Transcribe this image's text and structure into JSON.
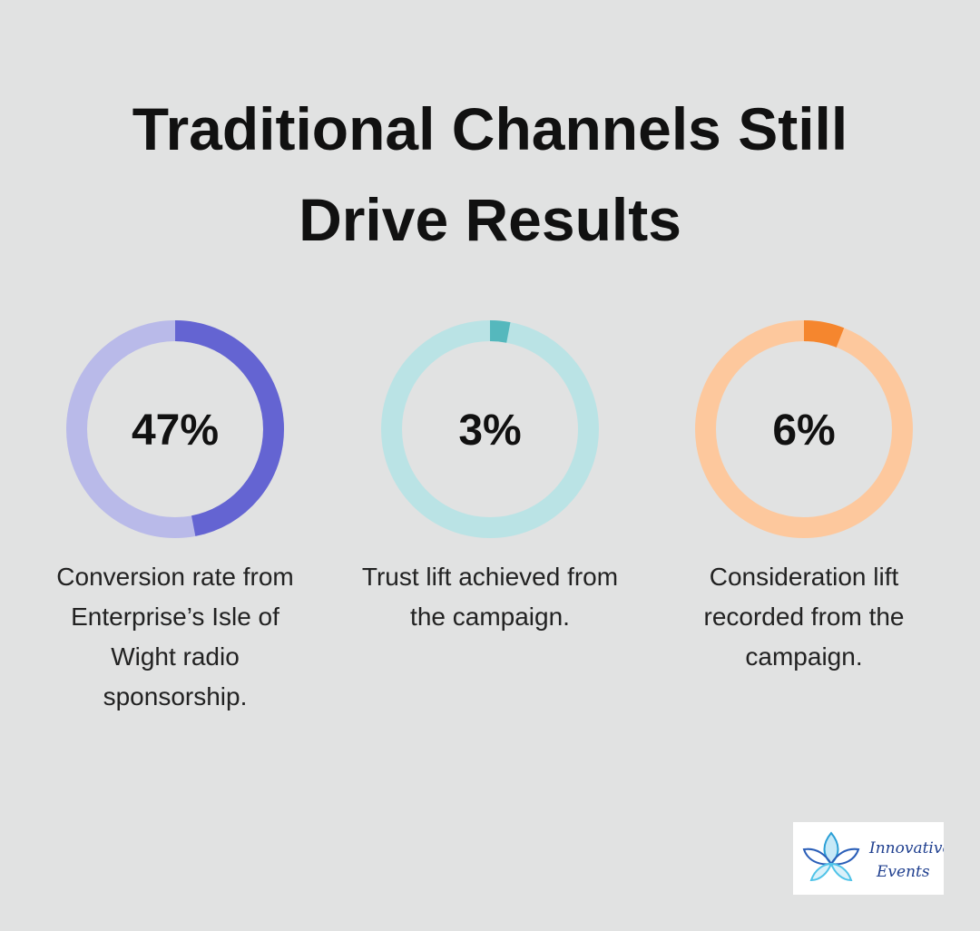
{
  "title": "Traditional Channels Still Drive Results",
  "chart_data": [
    {
      "type": "donut",
      "value": 47,
      "value_label": "47%",
      "caption": "Conversion rate from Enterprise’s Isle of Wight radio sponsorship.",
      "color": "#6464d2",
      "track_color": "#b9bae9",
      "ylim": [
        0,
        100
      ]
    },
    {
      "type": "donut",
      "value": 3,
      "value_label": "3%",
      "caption": "Trust lift achieved from the campaign.",
      "color": "#55b8bd",
      "track_color": "#bae3e5",
      "ylim": [
        0,
        100
      ]
    },
    {
      "type": "donut",
      "value": 6,
      "value_label": "6%",
      "caption": "Consideration lift recorded from the campaign.",
      "color": "#f5862e",
      "track_color": "#fdc89d",
      "ylim": [
        0,
        100
      ]
    }
  ],
  "logo": {
    "line1": "Innovative",
    "line2": "Events"
  }
}
